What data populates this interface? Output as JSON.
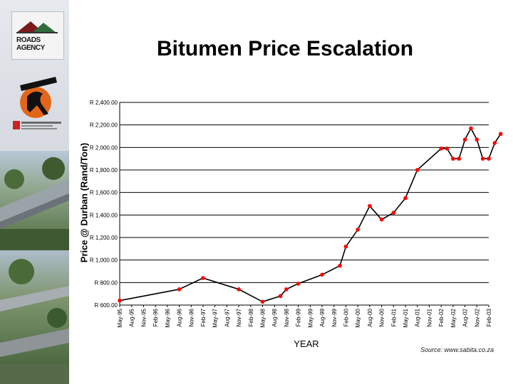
{
  "page": {
    "title": "Bitumen Price Escalation",
    "source": "Source: www.sabita.co.za"
  },
  "sidebar": {
    "logo_roads": "ROADS AGENCY"
  },
  "colors": {
    "line": "#000000",
    "marker": "#ff0000",
    "grid": "#000000"
  },
  "chart_data": {
    "type": "line",
    "title": "Bitumen Price Escalation",
    "xlabel": "YEAR",
    "ylabel": "Price @ Durban (Rand/Ton)",
    "ylim": [
      600,
      2400
    ],
    "yticks": [
      600,
      800,
      1000,
      1200,
      1400,
      1600,
      1800,
      2000,
      2200,
      2400
    ],
    "ytick_labels": [
      "R 600.00",
      "R 800.00",
      "R 1,000.00",
      "R 1,200.00",
      "R 1,400.00",
      "R 1,600.00",
      "R 1,800.00",
      "R 2,000.00",
      "R 2,200.00",
      "R 2,400.00"
    ],
    "categories": [
      "May-95",
      "Aug-95",
      "Nov-95",
      "Feb-96",
      "May-96",
      "Aug-96",
      "Nov-96",
      "Feb-97",
      "May-97",
      "Aug-97",
      "Nov-97",
      "Feb-98",
      "May-98",
      "Aug-98",
      "Nov-98",
      "Feb-99",
      "May-99",
      "Aug-99",
      "Nov-99",
      "Feb-00",
      "May-00",
      "Aug-00",
      "Nov-00",
      "Feb-01",
      "May-01",
      "Aug-01",
      "Nov-01",
      "Feb-02",
      "May-02",
      "Aug-02",
      "Nov-02",
      "Feb-03"
    ],
    "grid": true,
    "series": [
      {
        "x": [
          0,
          5,
          7,
          10,
          12,
          13.5,
          14,
          15,
          17,
          18.5,
          19,
          20,
          21,
          22,
          23,
          24,
          25,
          27,
          27.5,
          28,
          28.5,
          29,
          29.5,
          30,
          30.5,
          31,
          31.5,
          32
        ],
        "values": [
          640,
          740,
          840,
          740,
          630,
          680,
          740,
          790,
          870,
          950,
          1120,
          1270,
          1480,
          1360,
          1420,
          1550,
          1800,
          1990,
          1990,
          1900,
          1900,
          2070,
          2170,
          2070,
          1900,
          1900,
          2040,
          2120
        ]
      }
    ]
  }
}
